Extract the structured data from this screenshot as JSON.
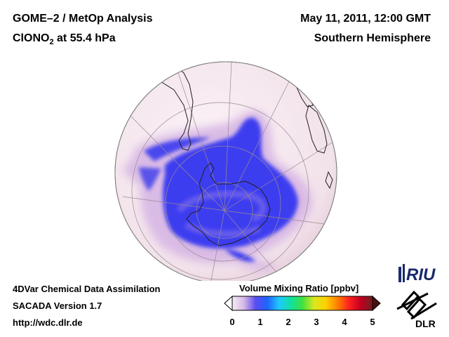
{
  "header": {
    "title_line1": "GOME–2 / MetOp Analysis",
    "title_line2_species": "ClONO",
    "title_line2_sub": "2",
    "title_line2_level": " at 55.4 hPa",
    "date": "May 11, 2011, 12:00 GMT",
    "hemisphere": "Southern Hemisphere"
  },
  "footer": {
    "line1": "4DVar Chemical Data Assimilation",
    "line2": "SACADA Version 1.7",
    "line3": "http://wdc.dlr.de"
  },
  "colorbar": {
    "title": "Volume Mixing Ratio [ppbv]",
    "ticks": [
      "0",
      "1",
      "2",
      "3",
      "4",
      "5"
    ],
    "range": [
      0,
      5
    ],
    "colors": [
      "#f5ecf4",
      "#d6b8e6",
      "#5a4cf0",
      "#1e64ff",
      "#20c8ff",
      "#10e0a0",
      "#40e040",
      "#d8e820",
      "#ffd000",
      "#ff8000",
      "#ff2020",
      "#c00020",
      "#702020"
    ]
  },
  "logos": {
    "riu": "RIU",
    "dlr": "DLR"
  },
  "map": {
    "projection": "orthographic-south-pole",
    "background_color": "#f4e8ee",
    "field_low_color": "#3c3cf0"
  }
}
